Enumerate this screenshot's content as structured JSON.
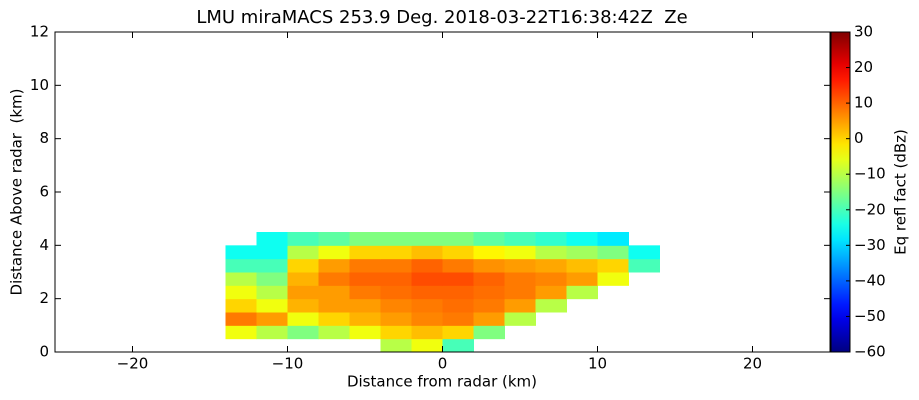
{
  "chart_data": {
    "type": "heatmap",
    "title": "LMU miraMACS 253.9 Deg. 2018-03-22T16:38:42Z  Ze",
    "x_label": "Distance from radar (km)",
    "y_label": "Distance Above radar  (km)",
    "colorbar_label": "Eq refl fact (dBz)",
    "colormap": "jet",
    "xlim": [
      -25,
      25
    ],
    "ylim": [
      0,
      12
    ],
    "xticks": [
      {
        "value": -20,
        "label": "−20"
      },
      {
        "value": -10,
        "label": "−10"
      },
      0,
      10,
      20
    ],
    "yticks": [
      0,
      2,
      4,
      6,
      8,
      10,
      12
    ],
    "clim": [
      -60,
      30
    ],
    "cticks": [
      {
        "value": -60,
        "label": "−60"
      },
      {
        "value": -50,
        "label": "−50"
      },
      {
        "value": -40,
        "label": "−40"
      },
      {
        "value": -30,
        "label": "−30"
      },
      {
        "value": -20,
        "label": "−20"
      },
      {
        "value": -10,
        "label": "−10"
      },
      0,
      10,
      20,
      30
    ],
    "x_edges": [
      -14,
      -12,
      -10,
      -8,
      -6,
      -4,
      -2,
      0,
      2,
      4,
      6,
      8,
      10,
      12,
      14
    ],
    "y_edges": [
      0,
      0.5,
      1,
      1.5,
      2,
      2.5,
      3,
      3.5,
      4,
      4.5
    ],
    "values": [
      [
        null,
        null,
        null,
        null,
        null,
        -10,
        -5,
        -20,
        null,
        null,
        null,
        null,
        null,
        null
      ],
      [
        -5,
        -10,
        -15,
        -10,
        -5,
        0,
        2,
        0,
        -15,
        null,
        null,
        null,
        null,
        null
      ],
      [
        8,
        5,
        -5,
        0,
        3,
        5,
        7,
        8,
        5,
        -10,
        null,
        null,
        null,
        null
      ],
      [
        0,
        -5,
        3,
        5,
        5,
        7,
        8,
        9,
        8,
        5,
        -10,
        null,
        null,
        null
      ],
      [
        -5,
        -10,
        5,
        5,
        8,
        9,
        10,
        10,
        9,
        8,
        5,
        -10,
        null,
        null
      ],
      [
        -10,
        -15,
        3,
        8,
        10,
        10,
        12,
        12,
        10,
        8,
        7,
        5,
        -5,
        null
      ],
      [
        -20,
        -20,
        0,
        5,
        8,
        8,
        10,
        8,
        6,
        5,
        4,
        2,
        0,
        -20
      ],
      [
        -25,
        -25,
        -10,
        -5,
        0,
        0,
        2,
        0,
        -3,
        -5,
        -10,
        -12,
        -15,
        -25
      ],
      [
        null,
        -25,
        -20,
        -18,
        -15,
        -15,
        -15,
        -15,
        -18,
        -20,
        -22,
        -25,
        -28,
        null
      ]
    ]
  }
}
